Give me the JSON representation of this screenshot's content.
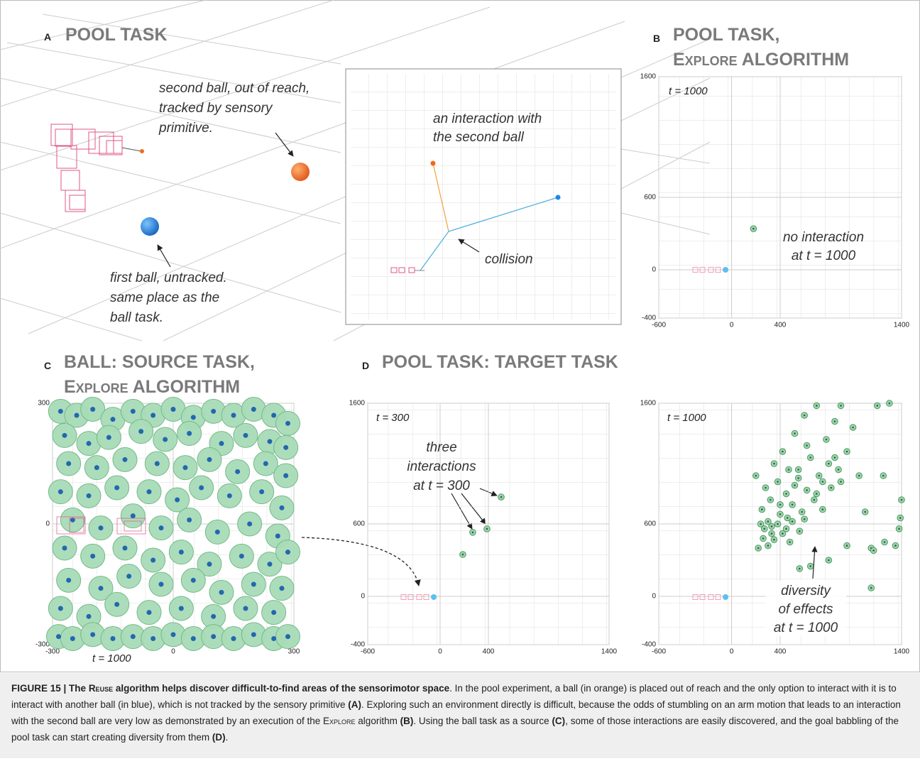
{
  "panel_a": {
    "label": "A",
    "title": "POOL  TASK",
    "second_ball": [
      "second ball, out of reach,",
      "tracked by sensory",
      "primitive."
    ],
    "first_ball": [
      "first ball, untracked.",
      "same place as the",
      "ball task."
    ],
    "interaction": [
      "an interaction with",
      "the second ball"
    ],
    "collision": "collision"
  },
  "panel_b": {
    "type": "scatter",
    "label": "B",
    "title": [
      "POOL  TASK,",
      "Explore ALGORITHM"
    ],
    "time_label": "t = 1000",
    "annotation": [
      "no interaction",
      "at t = 1000"
    ],
    "xlim": [
      -600,
      1400
    ],
    "ylim": [
      -400,
      1600
    ],
    "xticks": [
      -600,
      0,
      400,
      1400
    ],
    "yticks": [
      -400,
      0,
      600,
      1600
    ],
    "x": [
      180
    ],
    "y": [
      340
    ]
  },
  "panel_c": {
    "type": "scatter",
    "label": "C",
    "title": [
      "BALL: SOURCE TASK,",
      "Explore ALGORITHM"
    ],
    "time_label": "t = 1000",
    "xlim": [
      -300,
      300
    ],
    "ylim": [
      -300,
      300
    ],
    "xticks": [
      -300,
      0,
      300
    ],
    "yticks": [
      -300,
      0,
      300
    ],
    "x": [
      -280,
      -240,
      -200,
      -150,
      -100,
      -50,
      0,
      50,
      100,
      150,
      200,
      250,
      285,
      -270,
      -210,
      -160,
      -80,
      -20,
      40,
      120,
      180,
      240,
      280,
      -260,
      -190,
      -120,
      -40,
      30,
      90,
      160,
      230,
      280,
      -280,
      -210,
      -140,
      -60,
      10,
      70,
      140,
      220,
      270,
      -250,
      -180,
      -100,
      -30,
      40,
      110,
      190,
      260,
      -270,
      -200,
      -120,
      -50,
      20,
      90,
      170,
      240,
      285,
      -260,
      -180,
      -110,
      -30,
      50,
      120,
      200,
      270,
      -280,
      -210,
      -140,
      -60,
      20,
      100,
      180,
      250,
      -285,
      -250,
      -200,
      -150,
      -100,
      -50,
      0,
      50,
      100,
      150,
      200,
      250,
      285
    ],
    "y": [
      280,
      270,
      285,
      260,
      280,
      270,
      285,
      265,
      280,
      270,
      285,
      270,
      250,
      220,
      200,
      215,
      230,
      210,
      225,
      200,
      220,
      205,
      190,
      150,
      140,
      160,
      150,
      140,
      160,
      130,
      150,
      120,
      80,
      70,
      90,
      80,
      60,
      90,
      70,
      80,
      40,
      10,
      -10,
      20,
      -10,
      10,
      -20,
      0,
      -30,
      -60,
      -80,
      -60,
      -90,
      -70,
      -100,
      -80,
      -100,
      -70,
      -140,
      -160,
      -130,
      -150,
      -140,
      -170,
      -150,
      -160,
      -210,
      -230,
      -200,
      -220,
      -210,
      -230,
      -210,
      -220,
      -280,
      -285,
      -275,
      -285,
      -280,
      -285,
      -275,
      -285,
      -280,
      -285,
      -275,
      -285,
      -280
    ]
  },
  "panel_d": {
    "label": "D",
    "title": "POOL  TASK: TARGET TASK",
    "charts": [
      {
        "type": "scatter",
        "time_label": "t = 300",
        "annotation": [
          "three",
          "interactions",
          "at t = 300"
        ],
        "xlim": [
          -600,
          1400
        ],
        "ylim": [
          -400,
          1600
        ],
        "xticks": [
          -600,
          0,
          400,
          1400
        ],
        "yticks": [
          -400,
          0,
          600,
          1600
        ],
        "x": [
          506,
          270,
          388,
          188
        ],
        "y": [
          823,
          530,
          559,
          347
        ]
      },
      {
        "type": "scatter",
        "time_label": "t = 1000",
        "annotation": [
          "diversity",
          "of effects",
          "at t = 1000"
        ],
        "xlim": [
          -600,
          1400
        ],
        "ylim": [
          -400,
          1600
        ],
        "xticks": [
          -600,
          0,
          400,
          1400
        ],
        "yticks": [
          -400,
          0,
          600,
          1600
        ],
        "x": [
          200,
          250,
          280,
          300,
          320,
          350,
          380,
          400,
          420,
          450,
          470,
          500,
          520,
          550,
          580,
          600,
          620,
          650,
          680,
          700,
          720,
          750,
          780,
          800,
          820,
          850,
          880,
          900,
          950,
          1000,
          1050,
          1100,
          1150,
          1200,
          1300,
          1400,
          1380,
          1350,
          1260,
          1170,
          950,
          800,
          650,
          560,
          480,
          420,
          380,
          330,
          260,
          220,
          300,
          350,
          450,
          500,
          560,
          600,
          700,
          750,
          850,
          900,
          1150,
          1250,
          550,
          620,
          520,
          460,
          400,
          330,
          270,
          240,
          1390
        ],
        "y": [
          1000,
          720,
          900,
          620,
          800,
          1100,
          950,
          680,
          1200,
          850,
          1050,
          760,
          1350,
          980,
          700,
          1500,
          880,
          1150,
          800,
          1580,
          1000,
          720,
          1300,
          1100,
          900,
          1450,
          1050,
          1580,
          1200,
          1400,
          1000,
          700,
          400,
          1580,
          1600,
          800,
          560,
          420,
          450,
          380,
          420,
          300,
          250,
          230,
          450,
          520,
          600,
          580,
          480,
          400,
          420,
          470,
          560,
          620,
          540,
          640,
          850,
          950,
          1150,
          950,
          70,
          1000,
          1050,
          1250,
          920,
          650,
          760,
          520,
          560,
          600,
          650
        ]
      }
    ]
  },
  "caption": {
    "runs": [
      {
        "text": "FIGURE 15 | The ",
        "style": "bold"
      },
      {
        "text": "Reuse",
        "style": "bold smallcaps"
      },
      {
        "text": " algorithm helps discover difficult-to-find areas of the sensorimotor space",
        "style": "bold"
      },
      {
        "text": ". In the pool experiment, a ball (in orange) is placed out of reach and the only option to interact with it is to interact with another ball (in blue), which is not tracked by the sensory primitive ",
        "style": "plain"
      },
      {
        "text": "(A)",
        "style": "bold"
      },
      {
        "text": ". Exploring such an environment directly is difficult, because the odds of stumbling on an arm motion that leads to an interaction with the second ball are very low as demonstrated by an execution of the ",
        "style": "plain"
      },
      {
        "text": "Explore",
        "style": "smallcaps"
      },
      {
        "text": " algorithm ",
        "style": "plain"
      },
      {
        "text": "(B)",
        "style": "bold"
      },
      {
        "text": ". Using the ball task as a source ",
        "style": "plain"
      },
      {
        "text": "(C)",
        "style": "bold"
      },
      {
        "text": ", some of those interactions are easily discovered, and the goal babbling of the pool task can start creating diversity from them ",
        "style": "plain"
      },
      {
        "text": "(D)",
        "style": "bold"
      },
      {
        "text": ".",
        "style": "plain"
      }
    ]
  }
}
